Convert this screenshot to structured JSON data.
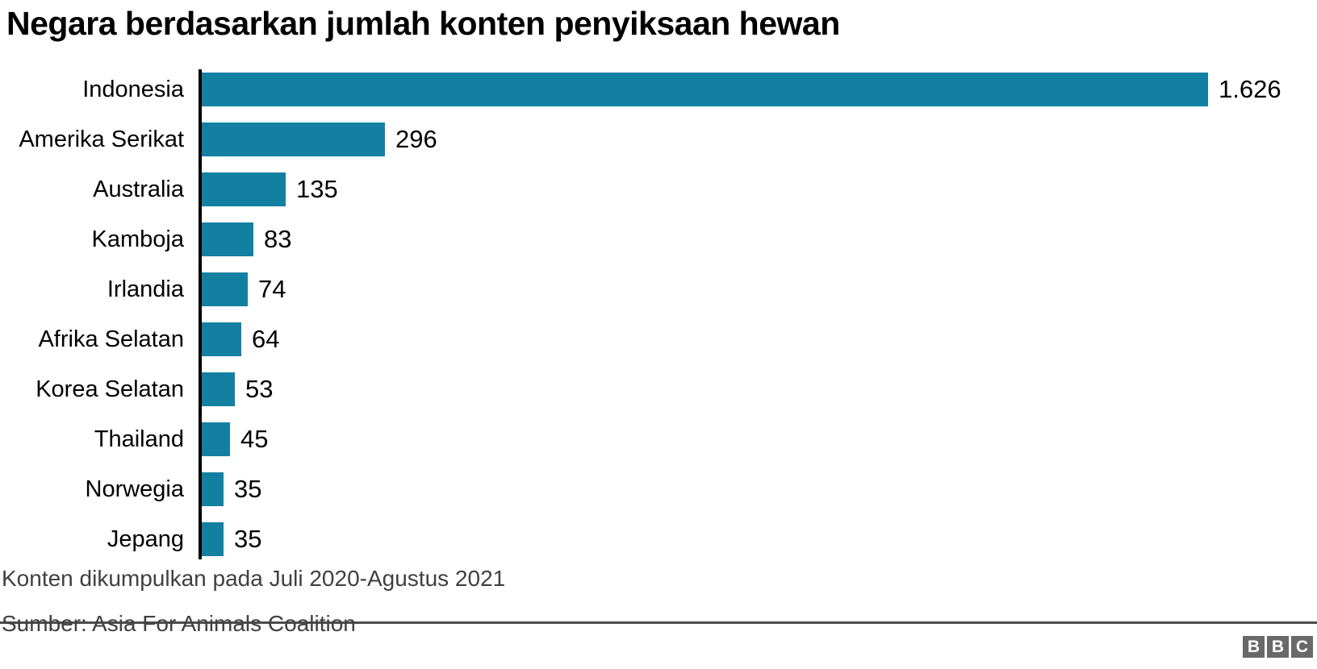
{
  "title": "Negara berdasarkan jumlah konten penyiksaan hewan",
  "chart_data": {
    "type": "bar",
    "orientation": "horizontal",
    "categories": [
      "Indonesia",
      "Amerika Serikat",
      "Australia",
      "Kamboja",
      "Irlandia",
      "Afrika Selatan",
      "Korea Selatan",
      "Thailand",
      "Norwegia",
      "Jepang"
    ],
    "values": [
      1626,
      296,
      135,
      83,
      74,
      64,
      53,
      45,
      35,
      35
    ],
    "value_labels": [
      "1.626",
      "296",
      "135",
      "83",
      "74",
      "64",
      "53",
      "45",
      "35",
      "35"
    ],
    "title": "Negara berdasarkan jumlah konten penyiksaan hewan",
    "xlabel": "",
    "ylabel": "",
    "xlim": [
      0,
      1626
    ],
    "bar_color": "#1380A1",
    "grid": false,
    "legend": false,
    "value_labels_position": "end-of-bar"
  },
  "footer": {
    "note": "Konten dikumpulkan pada Juli 2020-Agustus 2021",
    "source": "Sumber: Asia For Animals Coalition"
  },
  "branding": {
    "logo_letters": [
      "B",
      "B",
      "C"
    ],
    "logo_color": "#696969"
  }
}
